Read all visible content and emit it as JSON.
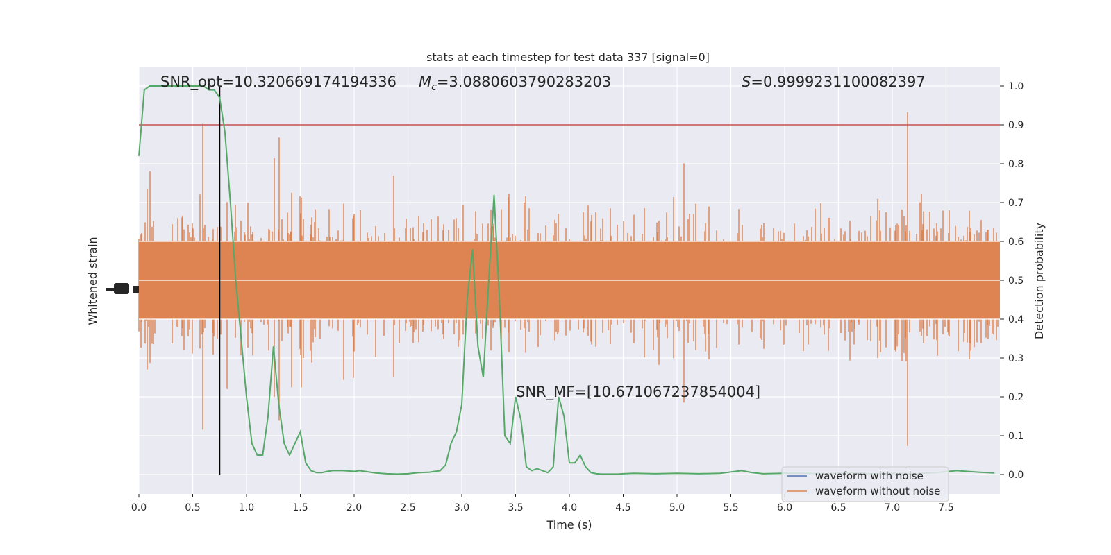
{
  "chart_data": {
    "type": "line",
    "title": "stats at each timestep for test data 337 [signal=0]",
    "xlabel": "Time (s)",
    "ylabel_left": "Whitened strain",
    "ylabel_right": "Detection probability",
    "xlim": [
      0,
      8
    ],
    "ylim_right": [
      -0.05,
      1.05
    ],
    "x_ticks": [
      "0.0",
      "0.5",
      "1.0",
      "1.5",
      "2.0",
      "2.5",
      "3.0",
      "3.5",
      "4.0",
      "4.5",
      "5.0",
      "5.5",
      "6.0",
      "6.5",
      "7.0",
      "7.5"
    ],
    "y_ticks_right": [
      "0.0",
      "0.1",
      "0.2",
      "0.3",
      "0.4",
      "0.5",
      "0.6",
      "0.7",
      "0.8",
      "0.9",
      "1.0"
    ],
    "annotations": {
      "snr_opt": "SNR_opt=10.320669174194336",
      "mc_symbol": "M",
      "mc_sub": "c",
      "mc_value": "=3.0880603790283203",
      "s_symbol": "S",
      "s_value": "=0.9999231100082397",
      "snr_mf": "SNR_MF=[10.671067237854004]"
    },
    "threshold": {
      "value": 0.9,
      "color": "#c44e52"
    },
    "vline": {
      "x": 0.75,
      "color": "#000000"
    },
    "legend": {
      "placement": "lower-right",
      "entries": [
        {
          "label": "waveform with noise",
          "color": "#4c72b0"
        },
        {
          "label": "waveform without noise",
          "color": "#dd8452"
        }
      ]
    },
    "strain": {
      "name": "waveform without noise",
      "color": "#dd8452",
      "ylim_right_equiv": [
        0.0,
        1.0
      ],
      "typical_range": [
        0.2,
        0.8
      ]
    },
    "probability": {
      "color": "#55a868",
      "x": [
        0.0,
        0.05,
        0.1,
        0.15,
        0.2,
        0.3,
        0.4,
        0.5,
        0.6,
        0.65,
        0.7,
        0.75,
        0.8,
        0.85,
        0.9,
        0.95,
        1.0,
        1.05,
        1.1,
        1.15,
        1.2,
        1.25,
        1.3,
        1.35,
        1.4,
        1.5,
        1.55,
        1.6,
        1.65,
        1.7,
        1.75,
        1.8,
        1.9,
        2.0,
        2.05,
        2.1,
        2.2,
        2.3,
        2.4,
        2.5,
        2.6,
        2.7,
        2.8,
        2.85,
        2.9,
        2.95,
        3.0,
        3.05,
        3.1,
        3.15,
        3.2,
        3.25,
        3.3,
        3.35,
        3.4,
        3.45,
        3.5,
        3.55,
        3.6,
        3.65,
        3.7,
        3.75,
        3.8,
        3.85,
        3.9,
        3.95,
        4.0,
        4.05,
        4.1,
        4.15,
        4.2,
        4.25,
        4.3,
        4.35,
        4.4,
        4.45,
        4.5,
        4.6,
        4.8,
        5.0,
        5.2,
        5.4,
        5.6,
        5.7,
        5.8,
        6.0,
        6.2,
        6.4,
        6.6,
        6.8,
        7.0,
        7.2,
        7.4,
        7.6,
        7.8,
        7.95
      ],
      "y": [
        0.82,
        0.99,
        1.0,
        1.0,
        1.0,
        1.0,
        1.0,
        1.0,
        1.0,
        0.99,
        0.99,
        0.97,
        0.88,
        0.7,
        0.5,
        0.35,
        0.2,
        0.08,
        0.05,
        0.05,
        0.15,
        0.33,
        0.18,
        0.08,
        0.05,
        0.11,
        0.03,
        0.01,
        0.005,
        0.005,
        0.008,
        0.01,
        0.01,
        0.008,
        0.01,
        0.008,
        0.004,
        0.002,
        0.001,
        0.002,
        0.005,
        0.006,
        0.01,
        0.025,
        0.08,
        0.11,
        0.18,
        0.45,
        0.58,
        0.33,
        0.25,
        0.5,
        0.72,
        0.45,
        0.1,
        0.08,
        0.2,
        0.14,
        0.02,
        0.01,
        0.015,
        0.01,
        0.005,
        0.02,
        0.2,
        0.15,
        0.03,
        0.03,
        0.05,
        0.02,
        0.005,
        0.002,
        0.001,
        0.001,
        0.001,
        0.001,
        0.002,
        0.003,
        0.002,
        0.003,
        0.002,
        0.003,
        0.01,
        0.005,
        0.002,
        0.003,
        0.003,
        0.002,
        0.005,
        0.002,
        0.003,
        0.002,
        0.005,
        0.01,
        0.006,
        0.004
      ]
    }
  }
}
